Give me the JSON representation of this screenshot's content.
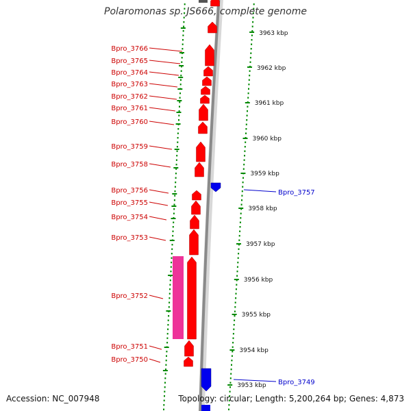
{
  "title": "Polaromonas sp. JS666, complete genome",
  "footer": {
    "accession": "Accession: NC_007948",
    "summary": "Topology: circular; Length: 5,200,264 bp; Genes: 4,873"
  },
  "colors": {
    "forward_gene": "#ff0000",
    "forward_label": "#cc0000",
    "reverse_gene": "#0000ee",
    "reverse_label": "#0000cc",
    "pseudo_feature": "#ee3399",
    "backbone": "#888888",
    "tick": "#008800"
  },
  "scale_labels": [
    "3963 kbp",
    "3962 kbp",
    "3961 kbp",
    "3960 kbp",
    "3959 kbp",
    "3958 kbp",
    "3957 kbp",
    "3956 kbp",
    "3955 kbp",
    "3954 kbp",
    "3953 kbp"
  ],
  "gene_labels": {
    "left": [
      "Bpro_3766",
      "Bpro_3765",
      "Bpro_3764",
      "Bpro_3763",
      "Bpro_3762",
      "Bpro_3761",
      "Bpro_3760",
      "Bpro_3759",
      "Bpro_3758",
      "Bpro_3756",
      "Bpro_3755",
      "Bpro_3754",
      "Bpro_3753",
      "Bpro_3752",
      "Bpro_3751",
      "Bpro_3750"
    ],
    "right": [
      "Bpro_3757",
      "Bpro_3749"
    ]
  }
}
